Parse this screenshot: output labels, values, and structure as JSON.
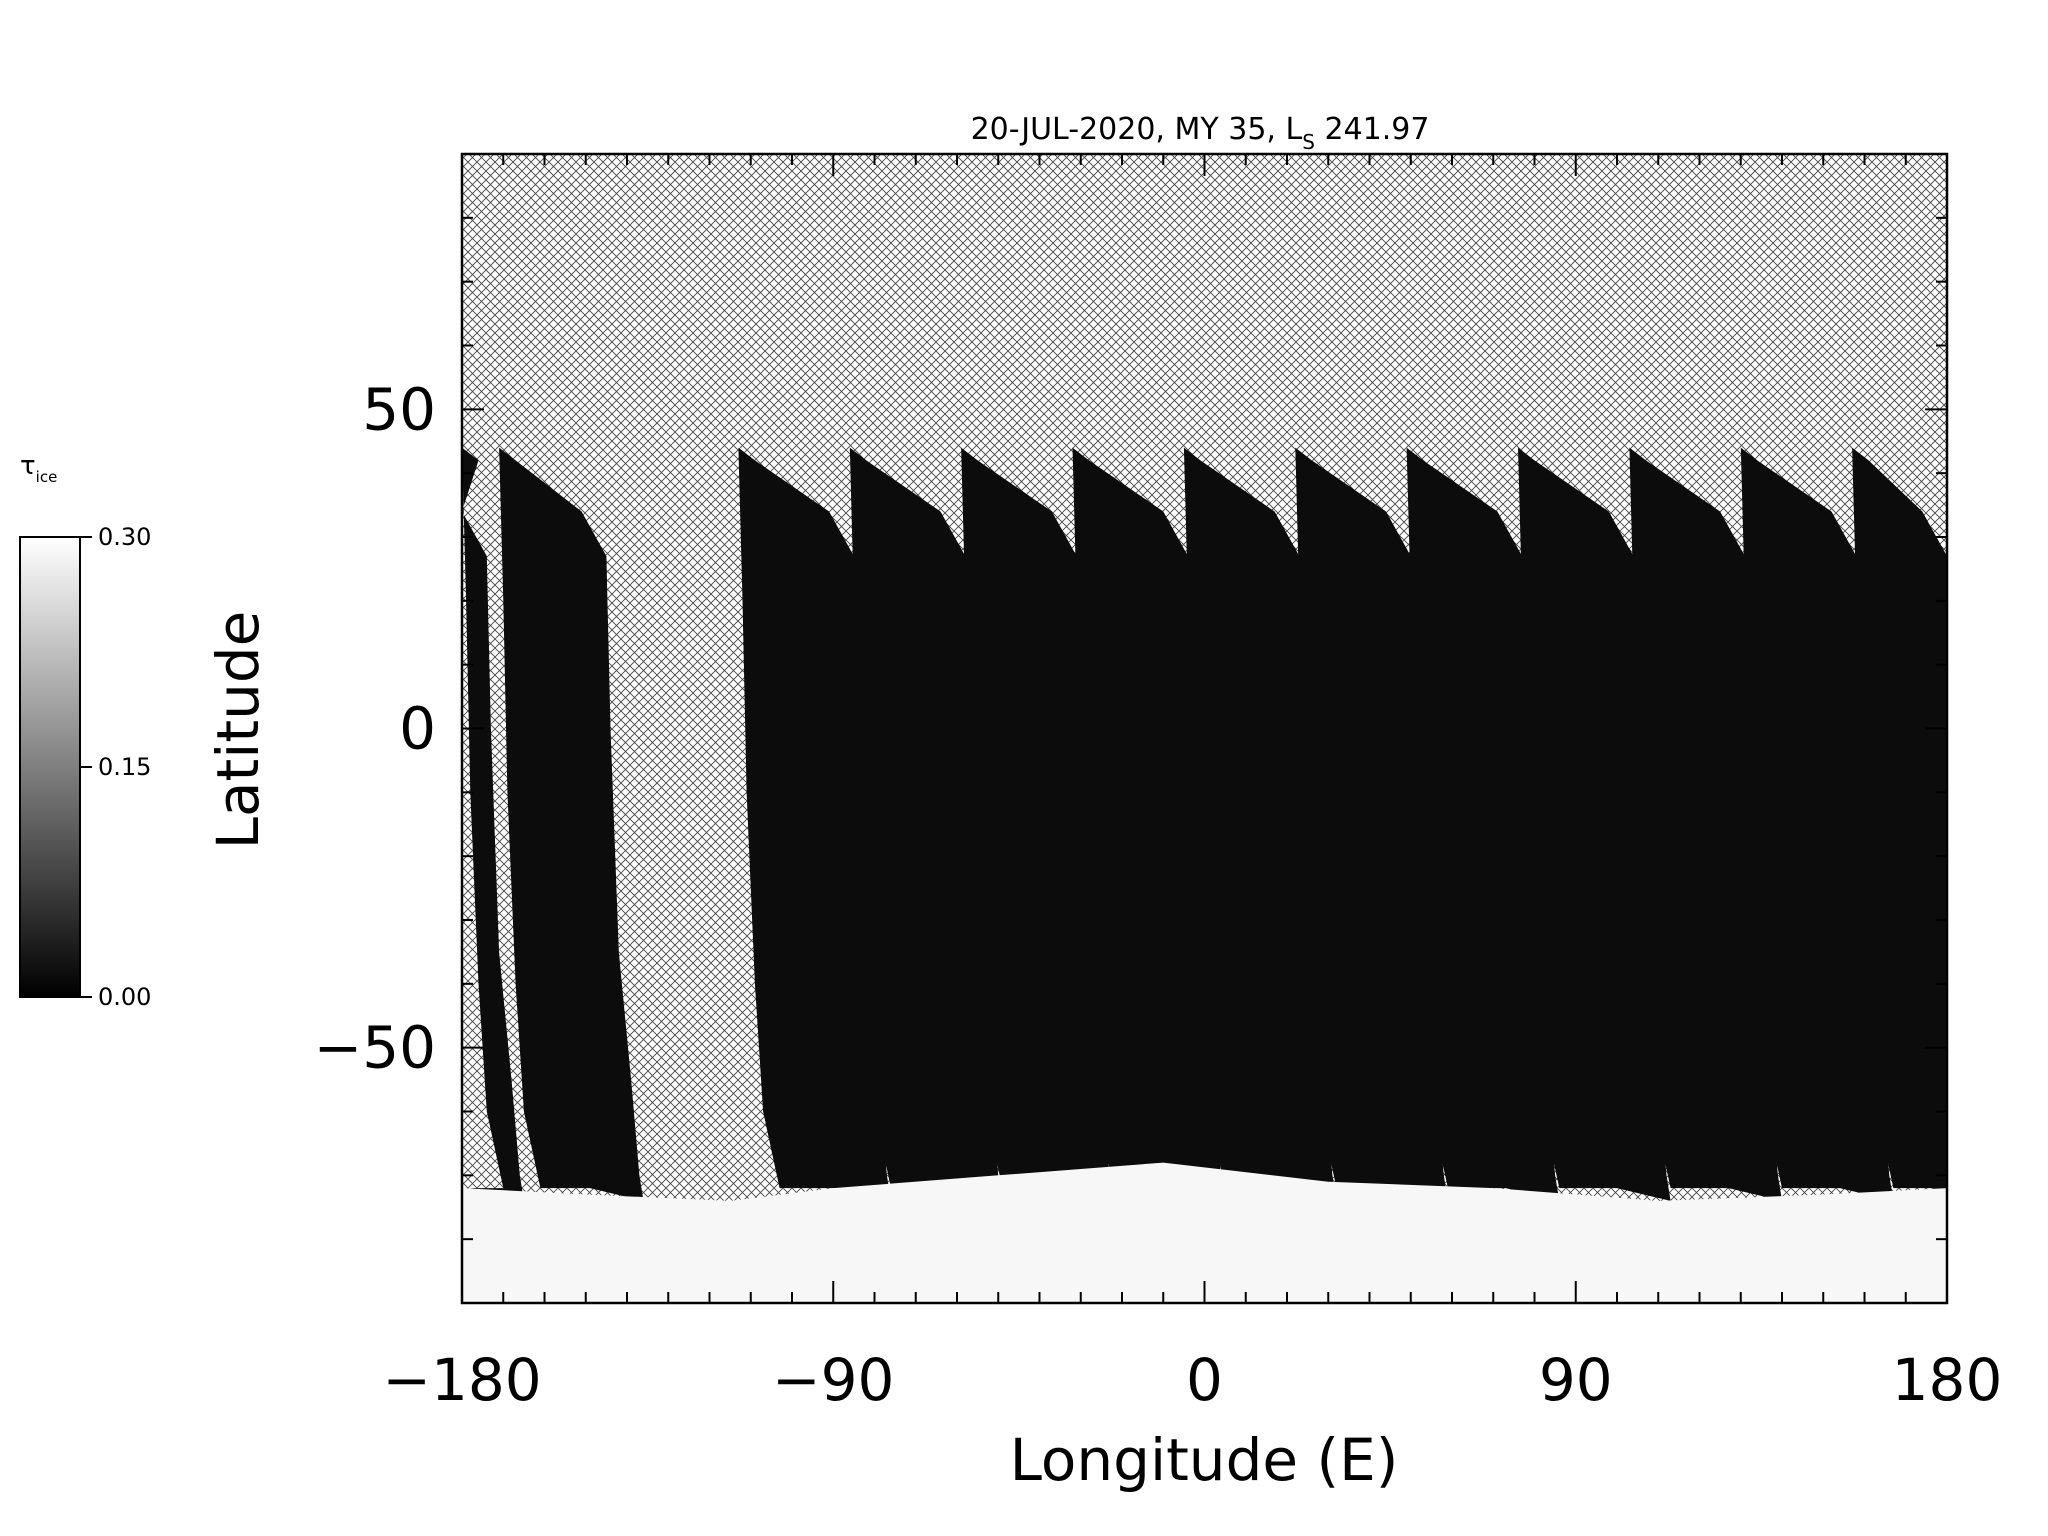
{
  "chart_data": {
    "type": "heatmap",
    "title": "20-JUL-2020, MY 35,  L",
    "title_subscript": "S",
    "title_suffix": " 241.97",
    "xlabel": "Longitude (E)",
    "ylabel": "Latitude",
    "xlim": [
      -180,
      180
    ],
    "ylim": [
      -90,
      90
    ],
    "xticks": [
      -180,
      -90,
      0,
      90,
      180
    ],
    "xtick_labels": [
      "−180",
      "−90",
      "0",
      "90",
      "180"
    ],
    "yticks": [
      50,
      0,
      -50
    ],
    "ytick_labels": [
      "50",
      "0",
      "−50"
    ],
    "missing_data": "cross-hatched (no data)",
    "polar_south_value_approx": 0.3,
    "orbit_track_value_approx": 0.0,
    "swaths": [
      {
        "lon_start": -180,
        "lon_end": -174
      },
      {
        "lon_start": -171,
        "lon_end": -145
      },
      {
        "lon_start": -113,
        "lon_end": -85
      },
      {
        "lon_start": -86,
        "lon_end": -58
      },
      {
        "lon_start": -59,
        "lon_end": -31
      },
      {
        "lon_start": -32,
        "lon_end": -4
      },
      {
        "lon_start": -5,
        "lon_end": 23
      },
      {
        "lon_start": 22,
        "lon_end": 50
      },
      {
        "lon_start": 49,
        "lon_end": 77
      },
      {
        "lon_start": 76,
        "lon_end": 104
      },
      {
        "lon_start": 103,
        "lon_end": 131
      },
      {
        "lon_start": 130,
        "lon_end": 158
      },
      {
        "lon_start": 157,
        "lon_end": 180
      }
    ],
    "colorbar": {
      "label": "τ",
      "label_subscript": "ice",
      "min": 0.0,
      "max": 0.3,
      "ticks": [
        "0.30",
        "0.15",
        "0.00"
      ],
      "colormap": "grayscale (black=0.00, white=0.30)"
    }
  }
}
